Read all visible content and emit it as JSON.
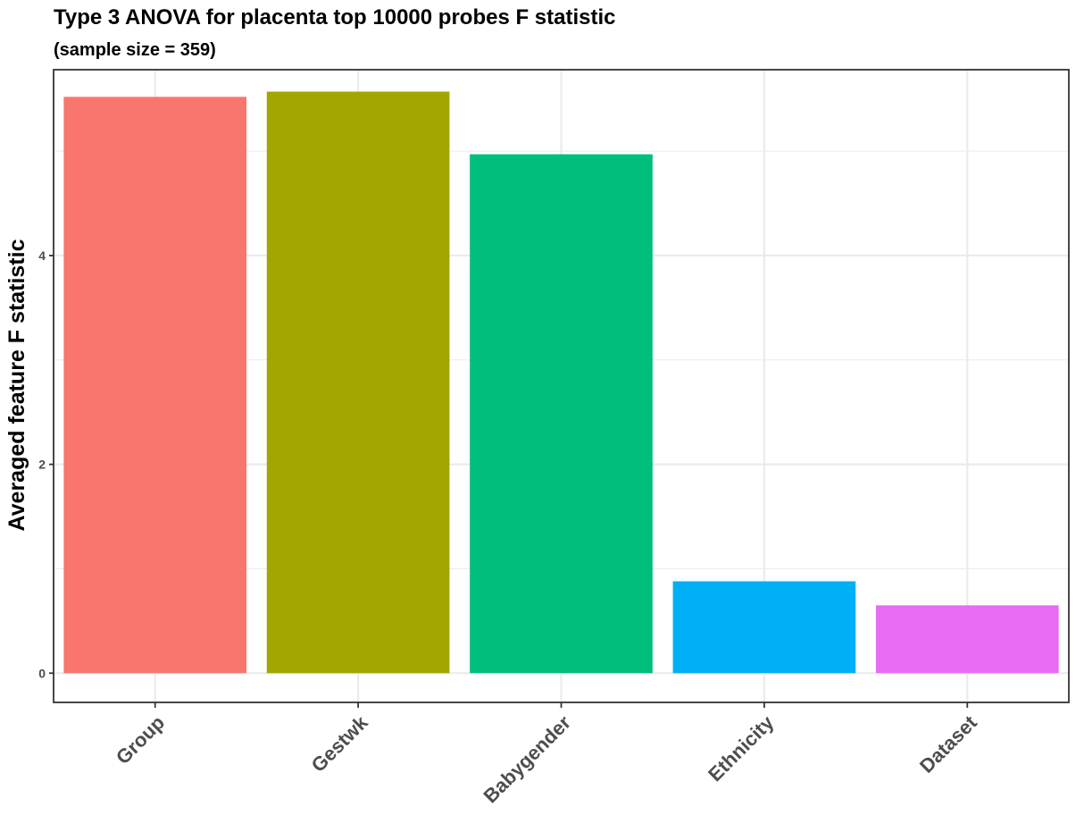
{
  "chart_data": {
    "type": "bar",
    "title": "Type 3 ANOVA for placenta top 10000 probes F statistic",
    "subtitle": "(sample size = 359)",
    "xlabel": "",
    "ylabel": "Averaged feature F statistic",
    "categories": [
      "Group",
      "Gestwk",
      "Babygender",
      "Ethnicity",
      "Dataset"
    ],
    "values": [
      5.52,
      5.57,
      4.97,
      0.88,
      0.65
    ],
    "colors": [
      "#F8766D",
      "#A3A500",
      "#00BF7D",
      "#00B0F6",
      "#E76BF3"
    ],
    "ylim": [
      -0.28,
      5.78
    ],
    "yticks": [
      0,
      2,
      4
    ],
    "ytick_labels": [
      "0",
      "2",
      "4"
    ],
    "grid": true,
    "legend": "none"
  }
}
